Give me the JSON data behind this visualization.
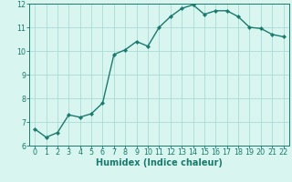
{
  "x": [
    0,
    1,
    2,
    3,
    4,
    5,
    6,
    7,
    8,
    9,
    10,
    11,
    12,
    13,
    14,
    15,
    16,
    17,
    18,
    19,
    20,
    21,
    22
  ],
  "y": [
    6.7,
    6.35,
    6.55,
    7.3,
    7.2,
    7.35,
    7.8,
    9.85,
    10.05,
    10.4,
    10.2,
    11.0,
    11.45,
    11.8,
    11.95,
    11.55,
    11.7,
    11.7,
    11.45,
    11.0,
    10.95,
    10.7,
    10.6
  ],
  "line_color": "#1a7a6e",
  "marker": "D",
  "marker_size": 2.2,
  "bg_color": "#d8f5f0",
  "grid_color": "#aaddd8",
  "xlabel": "Humidex (Indice chaleur)",
  "xlabel_fontsize": 7,
  "xlim": [
    -0.5,
    22.5
  ],
  "ylim": [
    6,
    12
  ],
  "yticks": [
    6,
    7,
    8,
    9,
    10,
    11,
    12
  ],
  "xticks": [
    0,
    1,
    2,
    3,
    4,
    5,
    6,
    7,
    8,
    9,
    10,
    11,
    12,
    13,
    14,
    15,
    16,
    17,
    18,
    19,
    20,
    21,
    22
  ],
  "tick_fontsize": 5.8,
  "line_width": 1.0
}
